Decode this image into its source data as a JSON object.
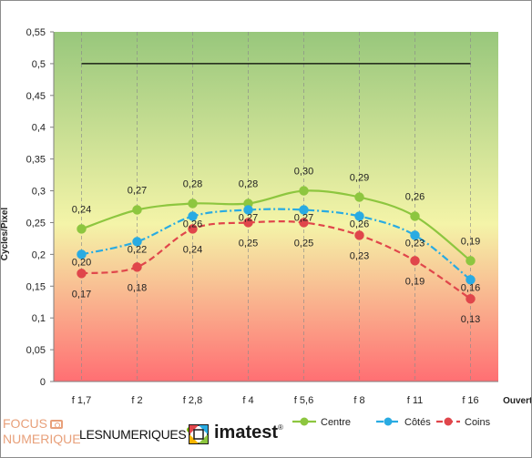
{
  "chart_data": {
    "type": "line",
    "categories": [
      "f 1,7",
      "f 2",
      "f 2,8",
      "f 4",
      "f 5,6",
      "f 8",
      "f 11",
      "f 16"
    ],
    "series": [
      {
        "name": "Centre",
        "values": [
          0.24,
          0.27,
          0.28,
          0.28,
          0.3,
          0.29,
          0.26,
          0.19
        ],
        "labels": [
          "0,24",
          "0,27",
          "0,28",
          "0,28",
          "0,30",
          "0,29",
          "0,26",
          "0,19"
        ],
        "color": "#8dc63f",
        "line_style": "solid",
        "marker": "circle"
      },
      {
        "name": "Côtés",
        "values": [
          0.2,
          0.22,
          0.26,
          0.27,
          0.27,
          0.26,
          0.23,
          0.16
        ],
        "labels": [
          "0,20",
          "0,22",
          "0,26",
          "0,27",
          "0,27",
          "0,26",
          "0,23",
          "0,16"
        ],
        "color": "#29abe2",
        "line_style": "dash-dot",
        "marker": "circle"
      },
      {
        "name": "Coins",
        "values": [
          0.17,
          0.18,
          0.24,
          0.25,
          0.25,
          0.23,
          0.19,
          0.13
        ],
        "labels": [
          "0,17",
          "0,18",
          "0,24",
          "0,25",
          "0,25",
          "0,23",
          "0,19",
          "0,13"
        ],
        "color": "#e0464b",
        "line_style": "dashed",
        "marker": "circle"
      }
    ],
    "reference_line": {
      "value": 0.5,
      "from_category": 0,
      "to_category": 7,
      "color": "#000000"
    },
    "xlabel": "Ouverture",
    "ylabel": "Cycles/Pixel",
    "ylim": [
      0,
      0.55
    ],
    "yticks": [
      "0",
      "0,05",
      "0,1",
      "0,15",
      "0,2",
      "0,25",
      "0,3",
      "0,35",
      "0,4",
      "0,45",
      "0,5",
      "0,55"
    ],
    "background_gradient": [
      "#98c77c",
      "#f4f4a8",
      "#ff6f73"
    ],
    "grid": "vertical-dashed",
    "legend_position": "bottom-right"
  },
  "logos": {
    "focus_line1": "FOCUS",
    "focus_line2": "NUMERIQUE",
    "lesnumeriques": "LESNUMERIQUES",
    "imatest": "imatest",
    "registered": "®"
  }
}
